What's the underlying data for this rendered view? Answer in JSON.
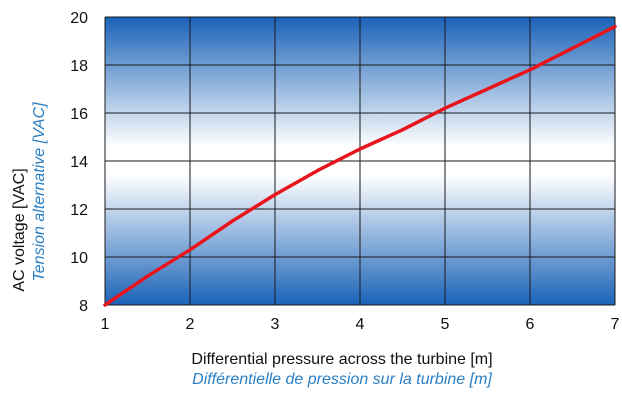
{
  "chart_data": {
    "type": "line",
    "title": "",
    "xlabel": "Differential pressure across the turbine [m]",
    "xlabel_alt": "Différentielle de pression sur la turbine [m]",
    "ylabel": "AC voltage [VAC]",
    "ylabel_alt": "Tension alternative [VAC]",
    "xlim": [
      1,
      7
    ],
    "ylim": [
      8,
      20
    ],
    "xticks": [
      "1",
      "2",
      "3",
      "4",
      "5",
      "6",
      "7"
    ],
    "yticks": [
      "8",
      "10",
      "12",
      "14",
      "16",
      "18",
      "20"
    ],
    "grid": true,
    "legend": "none",
    "series": [
      {
        "color": "#e8141c",
        "x": [
          1,
          1.5,
          2,
          2.5,
          3,
          3.5,
          4,
          4.5,
          5,
          5.5,
          6,
          6.5,
          7
        ],
        "y": [
          8.0,
          9.2,
          10.3,
          11.5,
          12.6,
          13.6,
          14.5,
          15.3,
          16.2,
          17.0,
          17.8,
          18.7,
          19.6
        ]
      }
    ],
    "colors": {
      "gradient_edge": "#1a62b8",
      "gradient_center": "#ffffff",
      "grid": "#1a1a1a",
      "alt_label": "#2a7fc4"
    }
  }
}
